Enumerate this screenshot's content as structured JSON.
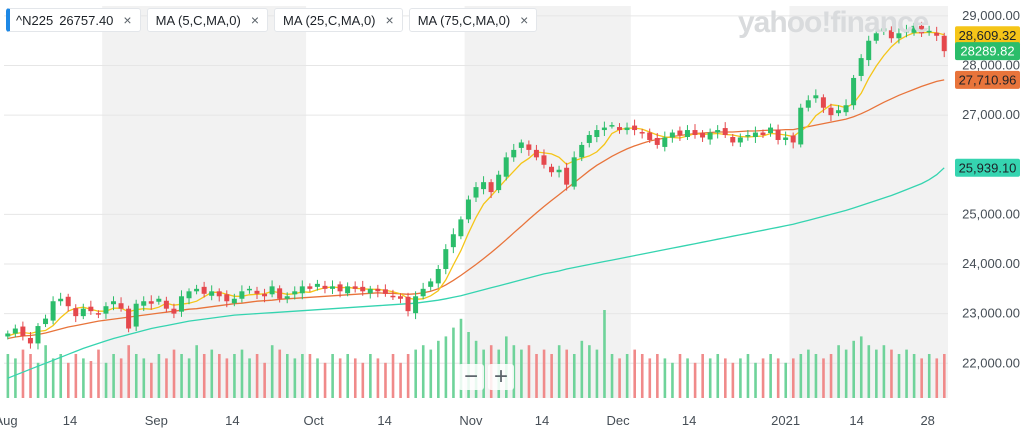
{
  "watermark": "yahoo!finance",
  "legend": [
    {
      "label": "^N225",
      "value": "26757.40",
      "close": "×"
    },
    {
      "label": "MA (5,C,MA,0)",
      "close": "×"
    },
    {
      "label": "MA (25,C,MA,0)",
      "close": "×"
    },
    {
      "label": "MA (75,C,MA,0)",
      "close": "×"
    }
  ],
  "zoom": {
    "minus": "−",
    "plus": "+"
  },
  "colors": {
    "up": "#2bbd6a",
    "down": "#e5484d",
    "ma5": "#f5c518",
    "ma25": "#e8743b",
    "ma75": "#35d4b0",
    "vol_up": "#6fd39a",
    "vol_down": "#f08a8a",
    "band": "#f2f2f2"
  },
  "chart_data": {
    "type": "candlestick",
    "x_axis": {
      "labels": [
        "Aug",
        "14",
        "Sep",
        "14",
        "Oct",
        "14",
        "Nov",
        "14",
        "Dec",
        "14",
        "2021",
        "14",
        "28"
      ]
    },
    "y_axis": {
      "labels": [
        "29,000.00",
        "28,000.00",
        "27,000.00",
        "25,000.00",
        "24,000.00",
        "23,000.00",
        "22,000.00"
      ],
      "ylim": [
        21300,
        29200
      ]
    },
    "price_labels": [
      {
        "text": "28,609.32",
        "value": 28609.32,
        "color": "#f5c518",
        "text_color": "#1d2228"
      },
      {
        "text": "28289.82",
        "value": 28289.82,
        "color": "#2bbd6a",
        "text_color": "#ffffff"
      },
      {
        "text": "27,710.96",
        "value": 27710.96,
        "color": "#e8743b",
        "text_color": "#1d2228"
      },
      {
        "text": "25,939.10",
        "value": 25939.1,
        "color": "#35d4b0",
        "text_color": "#1d2228"
      }
    ],
    "closes": [
      22600,
      22700,
      22550,
      22400,
      22750,
      22900,
      23250,
      23300,
      23150,
      22950,
      23100,
      23050,
      23000,
      23150,
      23250,
      23100,
      22700,
      23200,
      23250,
      23200,
      23300,
      23100,
      23000,
      23350,
      23450,
      23500,
      23400,
      23450,
      23350,
      23250,
      23300,
      23450,
      23500,
      23400,
      23350,
      23550,
      23300,
      23350,
      23450,
      23550,
      23500,
      23600,
      23500,
      23550,
      23450,
      23550,
      23500,
      23450,
      23500,
      23450,
      23400,
      23350,
      23300,
      23050,
      23350,
      23500,
      23650,
      23900,
      24300,
      24600,
      24900,
      25300,
      25550,
      25650,
      25450,
      25800,
      26150,
      26300,
      26450,
      26300,
      26150,
      26000,
      25850,
      25900,
      25600,
      26150,
      26400,
      26600,
      26700,
      26750,
      26800,
      26700,
      26750,
      26700,
      26650,
      26500,
      26400,
      26550,
      26650,
      26600,
      26700,
      26600,
      26550,
      26650,
      26700,
      26600,
      26450,
      26550,
      26600,
      26650,
      26600,
      26750,
      26500,
      26550,
      26450,
      27150,
      27300,
      27400,
      27150,
      27000,
      27100,
      27200,
      27750,
      28150,
      28500,
      28650,
      28750,
      28550,
      28650,
      28700,
      28800,
      28650,
      28700,
      28600,
      28290
    ],
    "ma5": [
      22550,
      22600,
      22620,
      22600,
      22640,
      22660,
      22760,
      22920,
      23050,
      23110,
      23130,
      23090,
      23050,
      23050,
      23110,
      23110,
      23040,
      23080,
      23100,
      23090,
      23130,
      23210,
      23170,
      23190,
      23210,
      23250,
      23340,
      23430,
      23430,
      23390,
      23350,
      23350,
      23380,
      23390,
      23400,
      23450,
      23420,
      23390,
      23400,
      23440,
      23430,
      23480,
      23520,
      23540,
      23520,
      23530,
      23510,
      23500,
      23490,
      23490,
      23470,
      23440,
      23400,
      23310,
      23290,
      23300,
      23360,
      23460,
      23680,
      23980,
      24270,
      24620,
      24940,
      25210,
      25370,
      25540,
      25710,
      25870,
      26030,
      26130,
      26260,
      26240,
      26220,
      26150,
      26010,
      26080,
      26130,
      26180,
      26260,
      26410,
      26630,
      26710,
      26740,
      26740,
      26720,
      26660,
      26600,
      26560,
      26550,
      26540,
      26580,
      26630,
      26610,
      26620,
      26630,
      26610,
      26600,
      26570,
      26560,
      26570,
      26580,
      26630,
      26620,
      26600,
      26570,
      26680,
      26790,
      26990,
      27100,
      27210,
      27190,
      27150,
      27240,
      27440,
      27740,
      27990,
      28200,
      28380,
      28510,
      28600,
      28660,
      28660,
      28670,
      28660,
      28620
    ],
    "ma25": [
      22500,
      22530,
      22550,
      22560,
      22580,
      22610,
      22650,
      22690,
      22730,
      22760,
      22790,
      22820,
      22850,
      22870,
      22890,
      22910,
      22930,
      22950,
      22970,
      22990,
      23010,
      23030,
      23050,
      23070,
      23090,
      23100,
      23120,
      23140,
      23160,
      23180,
      23200,
      23210,
      23230,
      23250,
      23260,
      23270,
      23290,
      23300,
      23310,
      23320,
      23330,
      23340,
      23350,
      23360,
      23370,
      23380,
      23390,
      23400,
      23410,
      23420,
      23410,
      23410,
      23400,
      23390,
      23400,
      23420,
      23450,
      23500,
      23580,
      23670,
      23770,
      23880,
      23990,
      24110,
      24230,
      24360,
      24490,
      24630,
      24760,
      24900,
      25030,
      25160,
      25280,
      25400,
      25520,
      25640,
      25760,
      25880,
      25990,
      26080,
      26170,
      26250,
      26320,
      26380,
      26430,
      26480,
      26510,
      26540,
      26570,
      26590,
      26610,
      26630,
      26640,
      26650,
      26660,
      26660,
      26660,
      26670,
      26680,
      26680,
      26690,
      26700,
      26700,
      26710,
      26710,
      26740,
      26770,
      26800,
      26830,
      26860,
      26890,
      26920,
      26970,
      27030,
      27100,
      27180,
      27260,
      27330,
      27400,
      27460,
      27520,
      27580,
      27630,
      27680,
      27711
    ],
    "ma75": [
      21700,
      21760,
      21820,
      21880,
      21940,
      22000,
      22060,
      22120,
      22180,
      22240,
      22300,
      22350,
      22400,
      22450,
      22500,
      22540,
      22580,
      22620,
      22660,
      22700,
      22730,
      22760,
      22790,
      22820,
      22850,
      22870,
      22890,
      22910,
      22930,
      22950,
      22970,
      22980,
      22990,
      23000,
      23010,
      23020,
      23030,
      23040,
      23050,
      23060,
      23070,
      23080,
      23090,
      23100,
      23110,
      23120,
      23130,
      23140,
      23150,
      23160,
      23170,
      23180,
      23190,
      23200,
      23210,
      23230,
      23250,
      23270,
      23300,
      23330,
      23360,
      23400,
      23440,
      23480,
      23520,
      23560,
      23600,
      23640,
      23680,
      23720,
      23760,
      23800,
      23830,
      23860,
      23900,
      23930,
      23960,
      23990,
      24020,
      24050,
      24080,
      24110,
      24140,
      24170,
      24200,
      24230,
      24260,
      24290,
      24320,
      24350,
      24380,
      24410,
      24440,
      24470,
      24500,
      24530,
      24560,
      24590,
      24620,
      24650,
      24680,
      24710,
      24740,
      24770,
      24800,
      24840,
      24880,
      24920,
      24960,
      25000,
      25040,
      25080,
      25130,
      25180,
      25230,
      25280,
      25330,
      25380,
      25440,
      25500,
      25560,
      25620,
      25700,
      25800,
      25939
    ],
    "volumes": [
      0.5,
      0.45,
      0.55,
      0.5,
      0.4,
      0.6,
      0.45,
      0.5,
      0.4,
      0.5,
      0.45,
      0.42,
      0.55,
      0.4,
      0.5,
      0.45,
      0.6,
      0.5,
      0.45,
      0.4,
      0.5,
      0.45,
      0.55,
      0.5,
      0.45,
      0.6,
      0.5,
      0.55,
      0.5,
      0.45,
      0.5,
      0.55,
      0.45,
      0.5,
      0.4,
      0.6,
      0.55,
      0.5,
      0.45,
      0.5,
      0.5,
      0.45,
      0.4,
      0.5,
      0.45,
      0.5,
      0.45,
      0.4,
      0.5,
      0.45,
      0.4,
      0.5,
      0.4,
      0.5,
      0.55,
      0.6,
      0.55,
      0.65,
      0.7,
      0.8,
      0.9,
      0.75,
      0.65,
      0.55,
      0.6,
      0.55,
      0.7,
      0.6,
      0.55,
      0.6,
      0.5,
      0.55,
      0.5,
      0.6,
      0.55,
      0.5,
      0.65,
      0.6,
      0.55,
      1.0,
      0.5,
      0.45,
      0.5,
      0.55,
      0.5,
      0.45,
      0.5,
      0.45,
      0.4,
      0.5,
      0.45,
      0.4,
      0.5,
      0.45,
      0.5,
      0.45,
      0.4,
      0.45,
      0.5,
      0.4,
      0.45,
      0.5,
      0.45,
      0.4,
      0.45,
      0.5,
      0.55,
      0.5,
      0.45,
      0.5,
      0.6,
      0.55,
      0.65,
      0.7,
      0.6,
      0.55,
      0.6,
      0.55,
      0.5,
      0.55,
      0.5,
      0.45,
      0.5,
      0.45,
      0.5
    ]
  }
}
